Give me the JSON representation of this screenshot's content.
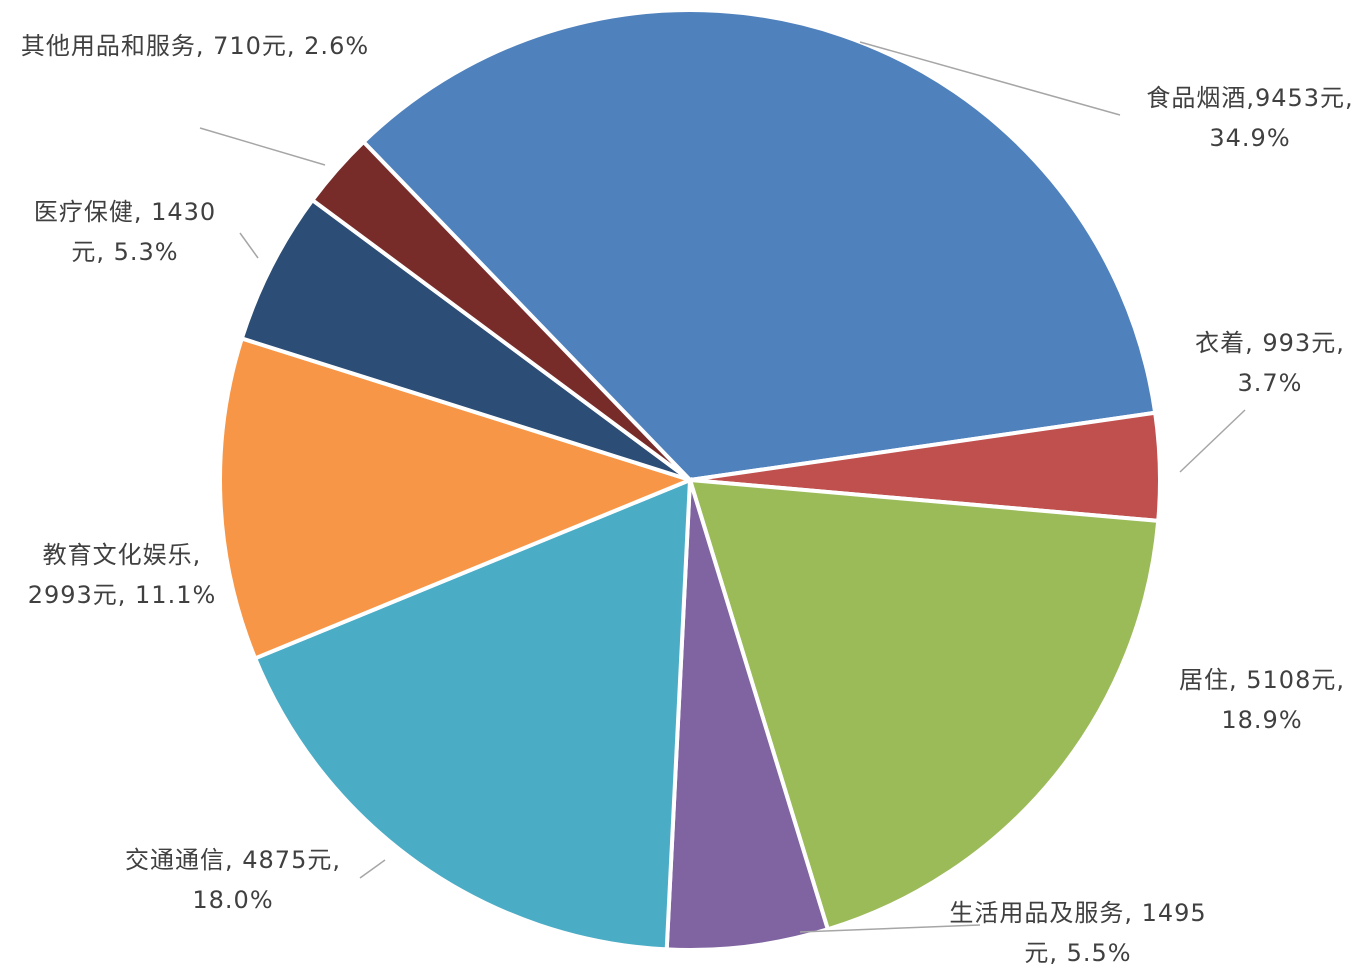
{
  "chart_data": {
    "type": "pie",
    "categories": [
      "食品烟酒",
      "衣着",
      "居住",
      "生活用品及服务",
      "交通通信",
      "教育文化娱乐",
      "医疗保健",
      "其他用品和服务"
    ],
    "values": [
      9453,
      993,
      5108,
      1495,
      4875,
      2993,
      1430,
      710
    ],
    "value_labels": [
      "食品烟酒,9453元, 34.9%",
      "衣着, 993元, 3.7%",
      "居住, 5108元, 18.9%",
      "生活用品及服务, 1495元, 5.5%",
      "交通通信, 4875元, 18.0%",
      "教育文化娱乐, 2993元, 11.1%",
      "医疗保健, 1430元, 5.3%",
      "其他用品和服务, 710元, 2.6%"
    ],
    "colors": [
      "#4f81bd",
      "#c0504d",
      "#9bbb59",
      "#8064a2",
      "#4bacc6",
      "#f79646",
      "#2c4d75",
      "#772c2a"
    ]
  }
}
